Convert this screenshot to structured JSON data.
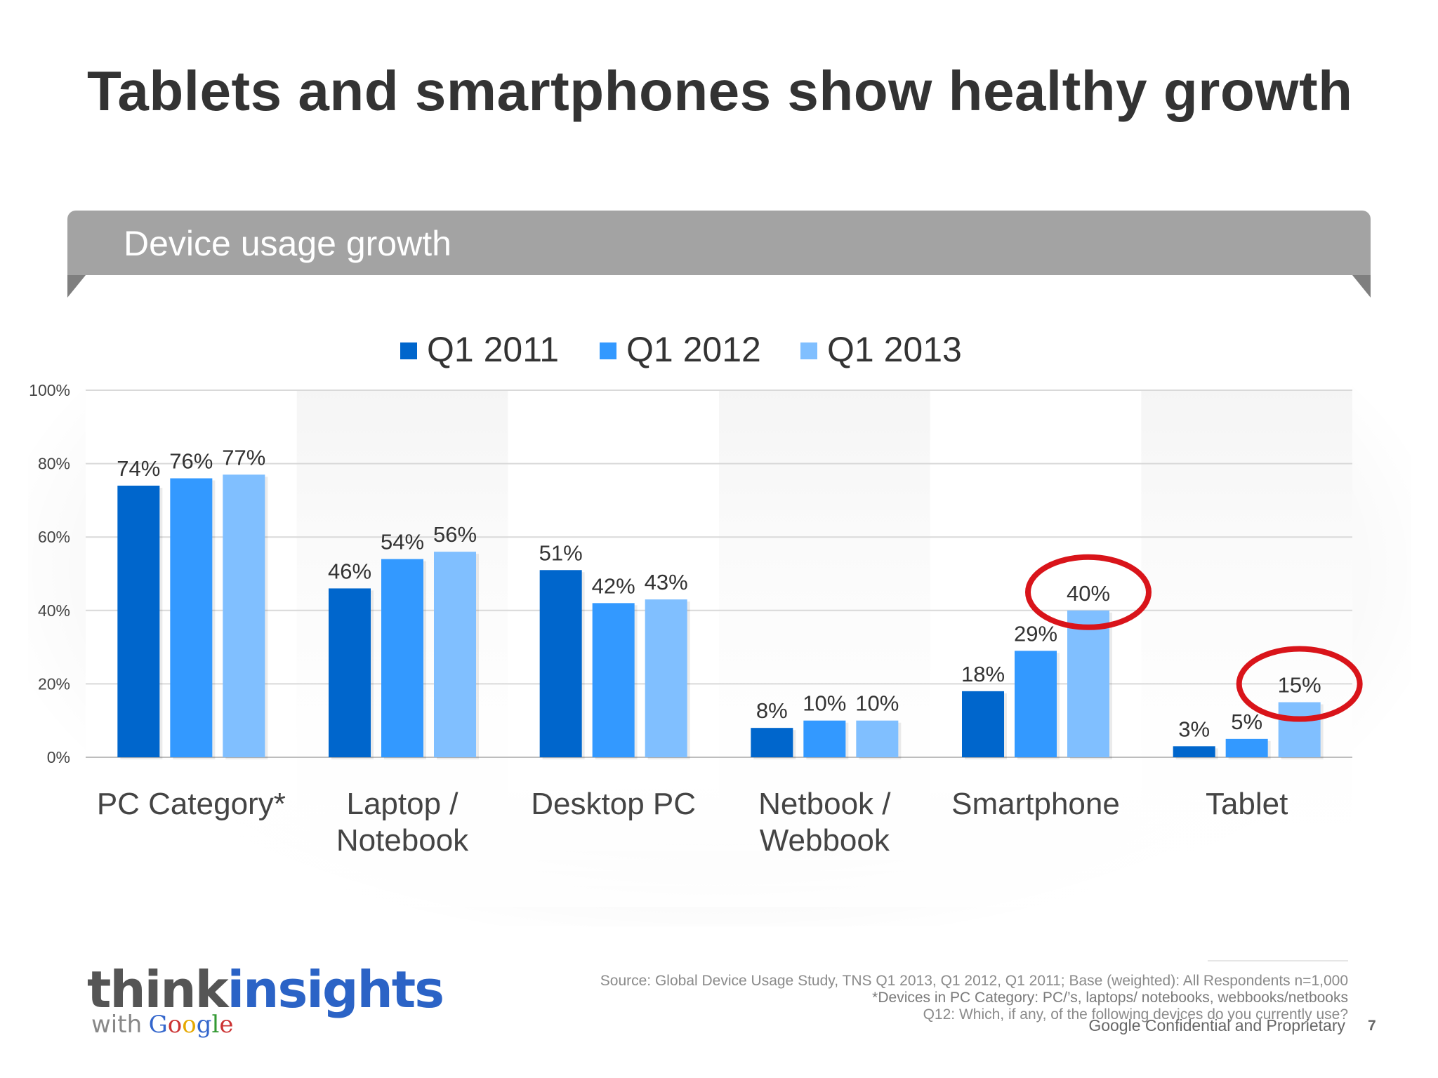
{
  "slide": {
    "title": "Tablets and smartphones show healthy growth",
    "panel_title": "Device usage growth",
    "page_number": "7"
  },
  "chart_data": {
    "type": "bar",
    "title": "Device usage growth",
    "categories": [
      "PC Category*",
      "Laptop /\nNotebook",
      "Desktop PC",
      "Netbook /\nWebbook",
      "Smartphone",
      "Tablet"
    ],
    "series": [
      {
        "name": "Q1 2011",
        "color": "#0066cc",
        "values": [
          74,
          46,
          51,
          8,
          18,
          3
        ]
      },
      {
        "name": "Q1 2012",
        "color": "#3399ff",
        "values": [
          76,
          54,
          42,
          10,
          29,
          5
        ]
      },
      {
        "name": "Q1 2013",
        "color": "#80bfff",
        "values": [
          77,
          56,
          43,
          10,
          40,
          15
        ]
      }
    ],
    "value_suffix": "%",
    "y_ticks": [
      "0%",
      "20%",
      "40%",
      "60%",
      "80%",
      "100%"
    ],
    "ylim": [
      0,
      100
    ],
    "grid": true,
    "legend_position": "top-center",
    "highlight_color": "#d9141a",
    "highlights": [
      {
        "category": "Smartphone",
        "series": "Q1 2013"
      },
      {
        "category": "Tablet",
        "series": "Q1 2013"
      }
    ]
  },
  "footer": {
    "logo_think": "think",
    "logo_insights": "insights",
    "logo_with": "with",
    "logo_google": "Google",
    "source_line1": "Source: Global Device Usage Study, TNS Q1 2013, Q1 2012, Q1 2011; Base (weighted): All Respondents n=1,000",
    "source_line2": "*Devices in PC Category: PC/’s, laptops/ notebooks, webbooks/netbooks",
    "source_line3": "Q12:  Which, if any, of the following devices do you currently use?",
    "confidential": "Google Confidential and Proprietary"
  }
}
